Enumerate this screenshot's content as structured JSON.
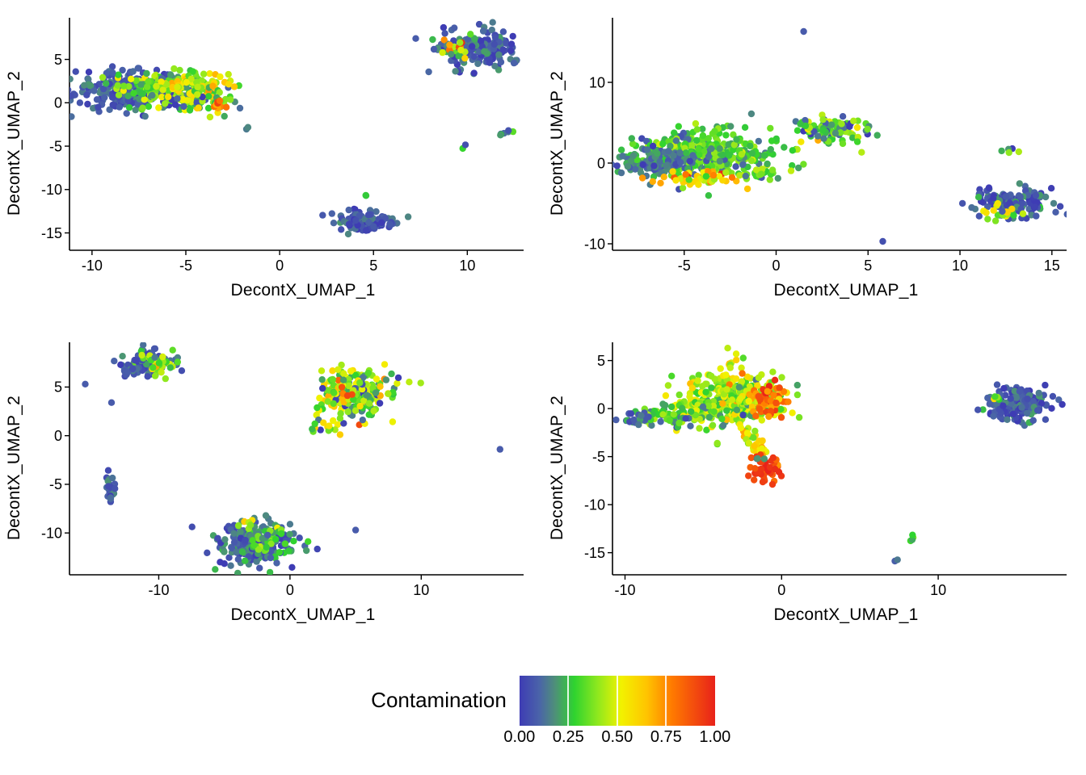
{
  "chart_data": {
    "type": "scatter",
    "point_radius": 4.2,
    "theme": {
      "panel_background": "#ffffff",
      "axis_line_color": "#000000",
      "text_color": "#000000",
      "gridlines": false
    },
    "colormap_stops": [
      {
        "t": 0.0,
        "color": "#3E3CB4"
      },
      {
        "t": 0.1,
        "color": "#4A63A9"
      },
      {
        "t": 0.18,
        "color": "#4E8F7A"
      },
      {
        "t": 0.28,
        "color": "#2FD32F"
      },
      {
        "t": 0.4,
        "color": "#8FE81E"
      },
      {
        "t": 0.52,
        "color": "#F2F200"
      },
      {
        "t": 0.65,
        "color": "#FFC400"
      },
      {
        "t": 0.78,
        "color": "#FF7A00"
      },
      {
        "t": 1.0,
        "color": "#E8221A"
      }
    ],
    "legend": {
      "title": "Contamination",
      "position": "bottom",
      "tick_values": [
        0,
        0.25,
        0.5,
        0.75,
        1
      ],
      "tick_labels": [
        "0.00",
        "0.25",
        "0.50",
        "0.75",
        "1.00"
      ]
    },
    "panels": [
      {
        "xlabel": "DecontX_UMAP_1",
        "ylabel": "DecontX_UMAP_2",
        "xlim": [
          -11.2,
          13.0
        ],
        "ylim": [
          -17.0,
          9.8
        ],
        "xticks": [
          -10,
          -5,
          0,
          5,
          10
        ],
        "yticks": [
          -15,
          -10,
          -5,
          0,
          5
        ],
        "clusters": [
          {
            "name": "left-mass-blue",
            "n": 230,
            "cx": -8.1,
            "cy": 1.3,
            "sx": 1.5,
            "sy": 1.05,
            "cont": 0.08,
            "cont_sd": 0.07
          },
          {
            "name": "left-mass-green",
            "n": 170,
            "cx": -6.0,
            "cy": 1.7,
            "sx": 1.5,
            "sy": 0.95,
            "cont": 0.3,
            "cont_sd": 0.12
          },
          {
            "name": "left-mass-yellow",
            "n": 70,
            "cx": -4.7,
            "cy": 2.1,
            "sx": 1.1,
            "sy": 0.7,
            "cont": 0.5,
            "cont_sd": 0.12
          },
          {
            "name": "left-mass-tail",
            "n": 60,
            "cx": -4.0,
            "cy": 0.2,
            "sx": 1.1,
            "sy": 0.55,
            "cont": 0.3,
            "cont_sd": 0.18
          },
          {
            "name": "left-tail-red",
            "n": 10,
            "cx": -3.4,
            "cy": -0.4,
            "sx": 0.35,
            "sy": 0.3,
            "cont": 0.8,
            "cont_sd": 0.1
          },
          {
            "name": "stray-below-left",
            "n": 2,
            "cx": -1.7,
            "cy": -2.9,
            "sx": 0.12,
            "sy": 0.1,
            "cont": 0.12,
            "cont_sd": 0.03
          },
          {
            "name": "top-right-blue",
            "n": 170,
            "cx": 10.7,
            "cy": 6.2,
            "sx": 1.15,
            "sy": 1.15,
            "cont": 0.08,
            "cont_sd": 0.06
          },
          {
            "name": "top-right-accents",
            "n": 22,
            "cx": 9.4,
            "cy": 6.1,
            "sx": 0.55,
            "sy": 0.7,
            "cont": 0.45,
            "cont_sd": 0.25
          },
          {
            "name": "mid-right-line",
            "n": 9,
            "shape": "line",
            "cx": 9.6,
            "cy": -5.4,
            "x2": 12.5,
            "y2": -3.1,
            "jitter": 0.15,
            "cont": 0.3,
            "cont_sd": 0.2
          },
          {
            "name": "bottom-cluster",
            "n": 110,
            "cx": 4.6,
            "cy": -13.7,
            "sx": 0.85,
            "sy": 0.6,
            "cont": 0.07,
            "cont_sd": 0.05
          },
          {
            "name": "bottom-stray",
            "n": 2,
            "cx": 4.5,
            "cy": -10.6,
            "sx": 0.15,
            "sy": 0.1,
            "cont": 0.18,
            "cont_sd": 0.1
          }
        ]
      },
      {
        "xlabel": "DecontX_UMAP_1",
        "ylabel": "DecontX_UMAP_2",
        "xlim": [
          -8.9,
          15.8
        ],
        "ylim": [
          -10.8,
          18.0
        ],
        "xticks": [
          -5,
          0,
          5,
          10,
          15
        ],
        "yticks": [
          -10,
          0,
          10
        ],
        "clusters": [
          {
            "name": "main-blob-green",
            "n": 380,
            "cx": -3.9,
            "cy": 1.1,
            "sx": 1.8,
            "sy": 1.4,
            "cont": 0.3,
            "cont_sd": 0.1
          },
          {
            "name": "main-blob-grey",
            "n": 140,
            "cx": -6.4,
            "cy": 0.1,
            "sx": 1.1,
            "sy": 0.95,
            "cont": 0.14,
            "cont_sd": 0.06
          },
          {
            "name": "main-blob-orange-edge",
            "n": 55,
            "cx": -4.4,
            "cy": -1.9,
            "sx": 1.3,
            "sy": 0.45,
            "cont": 0.6,
            "cont_sd": 0.15
          },
          {
            "name": "small-green",
            "n": 26,
            "cx": -0.6,
            "cy": -1.2,
            "sx": 0.5,
            "sy": 0.4,
            "cont": 0.35,
            "cont_sd": 0.1
          },
          {
            "name": "mid-cluster",
            "n": 100,
            "cx": 3.0,
            "cy": 4.1,
            "sx": 1.0,
            "sy": 0.75,
            "cont": 0.27,
            "cont_sd": 0.18
          },
          {
            "name": "single-top",
            "n": 1,
            "cx": 1.5,
            "cy": 16.3,
            "sx": 0,
            "sy": 0,
            "cont": 0.08,
            "cont_sd": 0
          },
          {
            "name": "single-bottom",
            "n": 1,
            "cx": 5.8,
            "cy": -9.7,
            "sx": 0,
            "sy": 0,
            "cont": 0.05,
            "cont_sd": 0
          },
          {
            "name": "right-cluster-blue",
            "n": 150,
            "cx": 13.0,
            "cy": -4.9,
            "sx": 1.0,
            "sy": 0.95,
            "cont": 0.09,
            "cont_sd": 0.07
          },
          {
            "name": "right-cluster-accents",
            "n": 18,
            "cx": 12.1,
            "cy": -6.1,
            "sx": 0.6,
            "sy": 0.45,
            "cont": 0.45,
            "cont_sd": 0.15
          },
          {
            "name": "right-pair",
            "n": 5,
            "cx": 12.7,
            "cy": 1.5,
            "sx": 0.3,
            "sy": 0.18,
            "cont": 0.3,
            "cont_sd": 0.15
          }
        ]
      },
      {
        "xlabel": "DecontX_UMAP_1",
        "ylabel": "DecontX_UMAP_2",
        "xlim": [
          -16.8,
          17.8
        ],
        "ylim": [
          -14.3,
          9.6
        ],
        "xticks": [
          -10,
          0,
          10
        ],
        "yticks": [
          -10,
          -5,
          0,
          5
        ],
        "clusters": [
          {
            "name": "topleft-blue",
            "n": 100,
            "cx": -10.9,
            "cy": 7.4,
            "sx": 0.95,
            "sy": 0.65,
            "cont": 0.1,
            "cont_sd": 0.08
          },
          {
            "name": "topleft-greens",
            "n": 35,
            "cx": -9.9,
            "cy": 7.3,
            "sx": 0.6,
            "sy": 0.5,
            "cont": 0.42,
            "cont_sd": 0.15
          },
          {
            "name": "topleft-trail",
            "n": 14,
            "shape": "line",
            "cx": -12.9,
            "cy": 6.1,
            "x2": -11.6,
            "y2": 7.1,
            "jitter": 0.18,
            "cont": 0.09,
            "cont_sd": 0.04
          },
          {
            "name": "single-far-left",
            "n": 1,
            "cx": -15.6,
            "cy": 5.3,
            "sx": 0,
            "sy": 0,
            "cont": 0.08,
            "cont_sd": 0
          },
          {
            "name": "single-left",
            "n": 1,
            "cx": -13.6,
            "cy": 3.4,
            "sx": 0,
            "sy": 0,
            "cont": 0.08,
            "cont_sd": 0
          },
          {
            "name": "left-streak",
            "n": 26,
            "cx": -13.7,
            "cy": -5.6,
            "sx": 0.14,
            "sy": 0.8,
            "cont": 0.1,
            "cont_sd": 0.06
          },
          {
            "name": "center-cluster",
            "n": 240,
            "cx": 5.0,
            "cy": 4.4,
            "sx": 1.35,
            "sy": 1.1,
            "cont": 0.35,
            "cont_sd": 0.18
          },
          {
            "name": "center-red-specks",
            "n": 4,
            "cx": 4.3,
            "cy": 4.5,
            "sx": 0.3,
            "sy": 0.3,
            "cont": 0.85,
            "cont_sd": 0.07
          },
          {
            "name": "center-below-scatter",
            "n": 22,
            "cx": 3.2,
            "cy": 1.3,
            "sx": 0.8,
            "sy": 0.8,
            "cont": 0.4,
            "cont_sd": 0.2
          },
          {
            "name": "bottom-cluster-blue",
            "n": 260,
            "cx": -2.6,
            "cy": -11.2,
            "sx": 1.55,
            "sy": 1.0,
            "cont": 0.12,
            "cont_sd": 0.09
          },
          {
            "name": "bottom-cluster-greens",
            "n": 36,
            "cx": -1.9,
            "cy": -10.7,
            "sx": 1.0,
            "sy": 0.6,
            "cont": 0.3,
            "cont_sd": 0.1
          },
          {
            "name": "bottom-yellow-specks",
            "n": 5,
            "cx": -3.3,
            "cy": -9.1,
            "sx": 0.4,
            "sy": 0.25,
            "cont": 0.55,
            "cont_sd": 0.08
          },
          {
            "name": "single-bottom-mid",
            "n": 1,
            "cx": 5.0,
            "cy": -9.7,
            "sx": 0,
            "sy": 0,
            "cont": 0.08,
            "cont_sd": 0
          },
          {
            "name": "single-right",
            "n": 1,
            "cx": 16.0,
            "cy": -1.4,
            "sx": 0,
            "sy": 0,
            "cont": 0.08,
            "cont_sd": 0
          }
        ]
      },
      {
        "xlabel": "DecontX_UMAP_1",
        "ylabel": "DecontX_UMAP_2",
        "xlim": [
          -10.8,
          18.2
        ],
        "ylim": [
          -17.3,
          6.9
        ],
        "xticks": [
          -10,
          0,
          10
        ],
        "yticks": [
          -15,
          -10,
          -5,
          0,
          5
        ],
        "clusters": [
          {
            "name": "main-blob",
            "n": 380,
            "cx": -3.1,
            "cy": 0.9,
            "sx": 1.6,
            "sy": 1.25,
            "cont": 0.42,
            "cont_sd": 0.12
          },
          {
            "name": "main-blob-red-edge",
            "n": 60,
            "cx": -0.9,
            "cy": 0.8,
            "sx": 0.6,
            "sy": 0.9,
            "cont": 0.78,
            "cont_sd": 0.1
          },
          {
            "name": "left-arm",
            "n": 85,
            "cx": -7.4,
            "cy": -0.9,
            "sx": 1.4,
            "sy": 0.55,
            "cont": 0.3,
            "cont_sd": 0.14
          },
          {
            "name": "left-arm-blue-tip",
            "n": 18,
            "cx": -9.2,
            "cy": -1.0,
            "sx": 0.5,
            "sy": 0.35,
            "cont": 0.1,
            "cont_sd": 0.05
          },
          {
            "name": "top-stalk",
            "n": 9,
            "shape": "line",
            "cx": -3.6,
            "cy": 3.4,
            "x2": -3.0,
            "y2": 5.1,
            "jitter": 0.18,
            "cont": 0.5,
            "cont_sd": 0.1
          },
          {
            "name": "top-single",
            "n": 1,
            "cx": -2.9,
            "cy": 5.7,
            "sx": 0,
            "sy": 0,
            "cont": 0.5,
            "cont_sd": 0
          },
          {
            "name": "lower-arm",
            "n": 38,
            "shape": "line",
            "cx": -2.3,
            "cy": -2.1,
            "x2": -1.2,
            "y2": -4.9,
            "jitter": 0.3,
            "cont": 0.55,
            "cont_sd": 0.12
          },
          {
            "name": "red-blob",
            "n": 42,
            "cx": -0.9,
            "cy": -6.4,
            "sx": 0.45,
            "sy": 0.75,
            "cont": 0.93,
            "cont_sd": 0.05
          },
          {
            "name": "grey-speck",
            "n": 3,
            "cx": -1.4,
            "cy": -5.2,
            "sx": 0.15,
            "sy": 0.12,
            "cont": 0.15,
            "cont_sd": 0.05
          },
          {
            "name": "green-single",
            "n": 2,
            "cx": -4.1,
            "cy": -3.6,
            "sx": 0.12,
            "sy": 0.1,
            "cont": 0.3,
            "cont_sd": 0.05
          },
          {
            "name": "right-cluster",
            "n": 160,
            "cx": 15.3,
            "cy": 0.6,
            "sx": 1.05,
            "sy": 1.0,
            "cont": 0.08,
            "cont_sd": 0.06
          },
          {
            "name": "right-cluster-speck",
            "n": 4,
            "cx": 13.9,
            "cy": 1.0,
            "sx": 0.2,
            "sy": 0.15,
            "cont": 0.4,
            "cont_sd": 0.12
          },
          {
            "name": "bottom-single",
            "n": 2,
            "cx": 7.3,
            "cy": -15.7,
            "sx": 0.1,
            "sy": 0.1,
            "cont": 0.1,
            "cont_sd": 0.04
          },
          {
            "name": "bottom-pair",
            "n": 4,
            "cx": 8.3,
            "cy": -13.4,
            "sx": 0.25,
            "sy": 0.2,
            "cont": 0.3,
            "cont_sd": 0.08
          }
        ]
      }
    ]
  }
}
